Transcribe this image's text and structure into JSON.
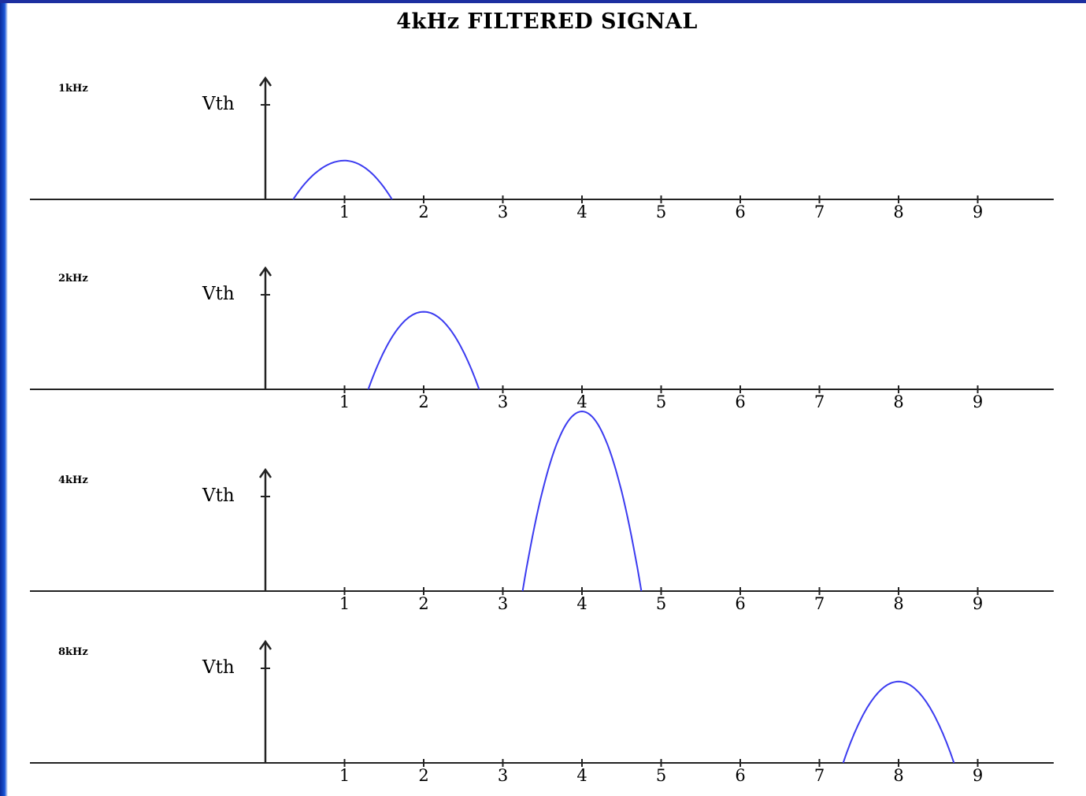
{
  "title": "4kHz FILTERED SIGNAL",
  "colors": {
    "curve": "#3b3bf0",
    "axis": "#222222",
    "frame": "#1c2fa0"
  },
  "chart_data": [
    {
      "type": "line",
      "label": "1kHz",
      "ylabel": "Vth",
      "ticks": [
        "1",
        "2",
        "3",
        "4",
        "5",
        "6",
        "7",
        "8",
        "9"
      ],
      "xlim": [
        -3,
        10
      ],
      "series": [
        {
          "peak_x": 1,
          "start_x": 0.35,
          "end_x": 1.6,
          "height_rel_vth": 0.41
        }
      ]
    },
    {
      "type": "line",
      "label": "2kHz",
      "ylabel": "Vth",
      "ticks": [
        "1",
        "2",
        "3",
        "4",
        "5",
        "6",
        "7",
        "8",
        "9"
      ],
      "xlim": [
        -3,
        10
      ],
      "series": [
        {
          "peak_x": 2,
          "start_x": 1.3,
          "end_x": 2.7,
          "height_rel_vth": 0.82
        }
      ]
    },
    {
      "type": "line",
      "label": "4kHz",
      "ylabel": "Vth",
      "ticks": [
        "1",
        "2",
        "3",
        "4",
        "5",
        "6",
        "7",
        "8",
        "9"
      ],
      "xlim": [
        -3,
        10
      ],
      "series": [
        {
          "peak_x": 4,
          "start_x": 3.25,
          "end_x": 4.75,
          "height_rel_vth": 1.9
        }
      ]
    },
    {
      "type": "line",
      "label": "8kHz",
      "ylabel": "Vth",
      "ticks": [
        "1",
        "2",
        "3",
        "4",
        "5",
        "6",
        "7",
        "8",
        "9"
      ],
      "xlim": [
        -3,
        10
      ],
      "series": [
        {
          "peak_x": 8,
          "start_x": 7.3,
          "end_x": 8.7,
          "height_rel_vth": 0.86
        }
      ]
    }
  ]
}
